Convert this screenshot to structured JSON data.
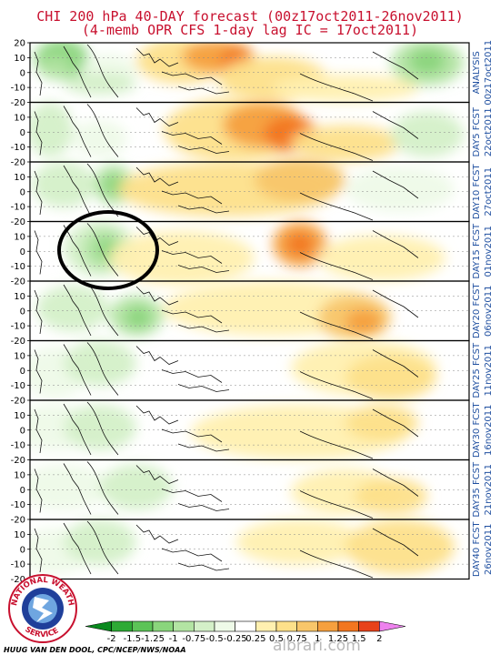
{
  "title_line1": "CHI 200 hPa 40-DAY forecast (00z17oct2011-26nov2011)",
  "title_line2": "(4-memb OPR CFS 1-day lag IC = 17oct2011)",
  "y_tick_labels": [
    "20",
    "10",
    "0",
    "-10",
    "-20"
  ],
  "panels": [
    {
      "label": "ANALYSIS",
      "date": "00z17oct2011"
    },
    {
      "label": "DAY5 FCST",
      "date": "22oct2011"
    },
    {
      "label": "DAY10 FCST",
      "date": "27oct2011"
    },
    {
      "label": "DAY15 FCST",
      "date": "01nov2011"
    },
    {
      "label": "DAY20 FCST",
      "date": "06nov2011"
    },
    {
      "label": "DAY25 FCST",
      "date": "11nov2011"
    },
    {
      "label": "DAY30 FCST",
      "date": "16nov2011"
    },
    {
      "label": "DAY35 FCST",
      "date": "21nov2011"
    },
    {
      "label": "DAY40 FCST",
      "date": "26nov2011"
    }
  ],
  "colorbar": {
    "labels": [
      "-2",
      "-1.5",
      "-1.25",
      "-1",
      "-0.75",
      "-0.5",
      "-0.25",
      "0.25",
      "0.5",
      "0.75",
      "1",
      "1.25",
      "1.5",
      "2"
    ],
    "colors": [
      "#0a8a1e",
      "#2eaa35",
      "#5cc357",
      "#8ad57c",
      "#b3e4a3",
      "#d4f0c8",
      "#eefae8",
      "#ffffff",
      "#fff0b0",
      "#fde08a",
      "#f8c66a",
      "#f6a03e",
      "#f2761f",
      "#e8421a",
      "#ee82ee"
    ]
  },
  "credit": "HUUG VAN DEN DOOL, CPC/NCEP/NWS/NOAA",
  "watermark": "albrari.com",
  "logo": {
    "name": "NATIONAL WEATHER SERVICE"
  }
}
